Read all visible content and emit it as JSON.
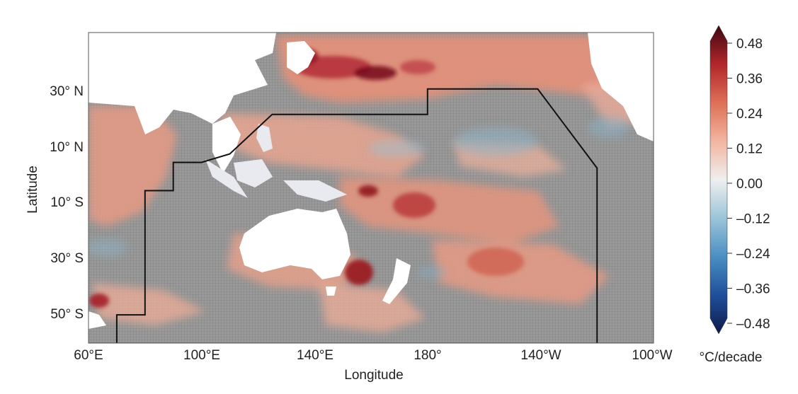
{
  "map": {
    "xlabel": "Longitude",
    "ylabel": "Latitude",
    "lon_ticks": [
      "60°E",
      "100°E",
      "140°E",
      "180°",
      "140°W",
      "100°W"
    ],
    "lat_ticks": [
      "30° N",
      "10° N",
      "10° S",
      "30° S",
      "50° S"
    ],
    "lon_range": [
      60,
      260
    ],
    "lat_range": [
      -57,
      53
    ],
    "mask_note": "",
    "colors": {
      "land": "#ffffff",
      "ice_shelf": "#e6e6ee",
      "not_significant_hatch": "#8c8c8c",
      "boundary_line": "#111111"
    }
  },
  "colorbar": {
    "unit": "°C/decade",
    "ticks": [
      "0.48",
      "0.36",
      "0.24",
      "0.12",
      "0.00",
      "–0.12",
      "–0.24",
      "–0.36",
      "–0.48"
    ],
    "range": [
      -0.48,
      0.48
    ],
    "extend": "both",
    "colormap": [
      "#0d1a4a",
      "#1f4f9a",
      "#4a8fc2",
      "#9cc4d9",
      "#efefef",
      "#f2b5a0",
      "#de6f57",
      "#b0262a",
      "#3f0712"
    ]
  },
  "boundary_path_lonlat": [
    [
      70,
      -57
    ],
    [
      70,
      -47
    ],
    [
      80,
      -47
    ],
    [
      80,
      -3
    ],
    [
      90,
      -3
    ],
    [
      90,
      7
    ],
    [
      100,
      7
    ],
    [
      110,
      10
    ],
    [
      125,
      24
    ],
    [
      180,
      24
    ],
    [
      180,
      33
    ],
    [
      219,
      33
    ],
    [
      240,
      5
    ],
    [
      240,
      -57
    ]
  ]
}
